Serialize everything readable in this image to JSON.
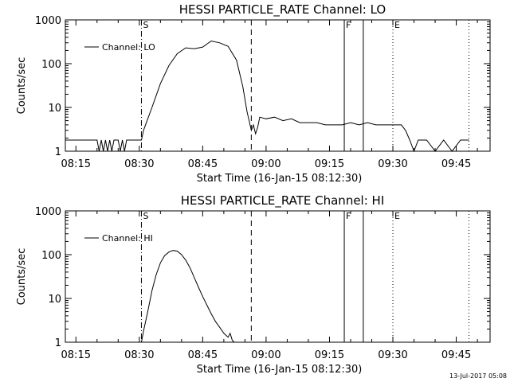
{
  "footer": {
    "date": "13-Jul-2017 05:08"
  },
  "chart_data": [
    {
      "type": "line",
      "title": "HESSI PARTICLE_RATE Channel: LO",
      "xlabel": "Start Time (16-Jan-15 08:12:30)",
      "ylabel": "Counts/sec",
      "yscale": "log",
      "ylim": [
        1,
        1000
      ],
      "xlim": [
        "08:12:30",
        "09:53:00"
      ],
      "x_ticks": [
        "08:15",
        "08:30",
        "08:45",
        "09:00",
        "09:15",
        "09:30",
        "09:45"
      ],
      "y_ticks": [
        "1",
        "10",
        "100",
        "1000"
      ],
      "legend": {
        "position": "top-left",
        "entries": [
          "Channel: LO"
        ]
      },
      "markers": [
        {
          "label": "S",
          "time": "08:30:30",
          "style": "dash-dot"
        },
        {
          "label": "",
          "time": "08:56:30",
          "style": "dashed"
        },
        {
          "label": "F",
          "time": "09:18:30",
          "style": "solid"
        },
        {
          "label": "",
          "time": "09:23:00",
          "style": "solid"
        },
        {
          "label": "E",
          "time": "09:30:00",
          "style": "dotted"
        },
        {
          "label": "",
          "time": "09:48:00",
          "style": "dotted"
        }
      ],
      "series": [
        {
          "name": "Channel: LO",
          "x": [
            "08:12:30",
            "08:20:00",
            "08:20:30",
            "08:21:00",
            "08:21:30",
            "08:22:00",
            "08:22:30",
            "08:23:00",
            "08:23:30",
            "08:24:00",
            "08:25:00",
            "08:25:30",
            "08:26:00",
            "08:26:30",
            "08:27:00",
            "08:28:00",
            "08:30:30",
            "08:31:00",
            "08:33:00",
            "08:35:00",
            "08:37:00",
            "08:39:00",
            "08:41:00",
            "08:43:00",
            "08:45:00",
            "08:47:00",
            "08:49:00",
            "08:51:00",
            "08:53:00",
            "08:54:30",
            "08:55:30",
            "08:56:30",
            "08:57:00",
            "08:57:30",
            "08:58:00",
            "08:58:30",
            "09:00:00",
            "09:02:00",
            "09:04:00",
            "09:06:00",
            "09:08:00",
            "09:10:00",
            "09:12:00",
            "09:14:00",
            "09:16:00",
            "09:18:00",
            "09:20:00",
            "09:22:00",
            "09:24:00",
            "09:26:00",
            "09:28:00",
            "09:30:00",
            "09:32:00",
            "09:33:00",
            "09:34:00",
            "09:35:00",
            "09:36:00",
            "09:38:00",
            "09:40:00",
            "09:42:00",
            "09:44:00",
            "09:46:00",
            "09:48:00"
          ],
          "y": [
            1.8,
            1.8,
            1,
            1.8,
            1,
            1.8,
            1,
            1.8,
            1,
            1.8,
            1.8,
            1,
            1.8,
            1,
            1.8,
            1.8,
            1.8,
            3,
            10,
            35,
            90,
            170,
            230,
            220,
            240,
            330,
            300,
            250,
            120,
            30,
            8,
            3,
            4,
            2.5,
            3.5,
            6,
            5.5,
            6,
            5,
            5.5,
            4.5,
            4.5,
            4.5,
            4,
            4,
            4,
            4.5,
            4,
            4.5,
            4,
            4,
            4,
            4,
            3,
            1.8,
            1,
            1.8,
            1.8,
            1,
            1.8,
            1,
            1.8,
            1.8
          ]
        }
      ]
    },
    {
      "type": "line",
      "title": "HESSI PARTICLE_RATE Channel: HI",
      "xlabel": "Start Time (16-Jan-15 08:12:30)",
      "ylabel": "Counts/sec",
      "yscale": "log",
      "ylim": [
        1,
        1000
      ],
      "xlim": [
        "08:12:30",
        "09:53:00"
      ],
      "x_ticks": [
        "08:15",
        "08:30",
        "08:45",
        "09:00",
        "09:15",
        "09:30",
        "09:45"
      ],
      "y_ticks": [
        "1",
        "10",
        "100",
        "1000"
      ],
      "legend": {
        "position": "top-left",
        "entries": [
          "Channel: HI"
        ]
      },
      "markers": [
        {
          "label": "S",
          "time": "08:30:30",
          "style": "dash-dot"
        },
        {
          "label": "",
          "time": "08:56:30",
          "style": "dashed"
        },
        {
          "label": "F",
          "time": "09:18:30",
          "style": "solid"
        },
        {
          "label": "",
          "time": "09:23:00",
          "style": "solid"
        },
        {
          "label": "E",
          "time": "09:30:00",
          "style": "dotted"
        },
        {
          "label": "",
          "time": "09:48:00",
          "style": "dotted"
        }
      ],
      "series": [
        {
          "name": "Channel: HI",
          "x": [
            "08:30:30",
            "08:31:00",
            "08:32:00",
            "08:33:00",
            "08:34:00",
            "08:35:00",
            "08:36:00",
            "08:37:00",
            "08:38:00",
            "08:39:00",
            "08:40:00",
            "08:41:00",
            "08:42:00",
            "08:43:00",
            "08:44:00",
            "08:45:00",
            "08:46:00",
            "08:47:00",
            "08:48:00",
            "08:49:00",
            "08:50:00",
            "08:51:00",
            "08:51:30",
            "08:52:00",
            "08:52:30"
          ],
          "y": [
            1,
            1.8,
            5,
            15,
            35,
            65,
            95,
            115,
            125,
            120,
            100,
            75,
            50,
            30,
            18,
            11,
            7,
            4.5,
            3,
            2.2,
            1.6,
            1.3,
            1.6,
            1.1,
            1
          ]
        }
      ]
    }
  ]
}
